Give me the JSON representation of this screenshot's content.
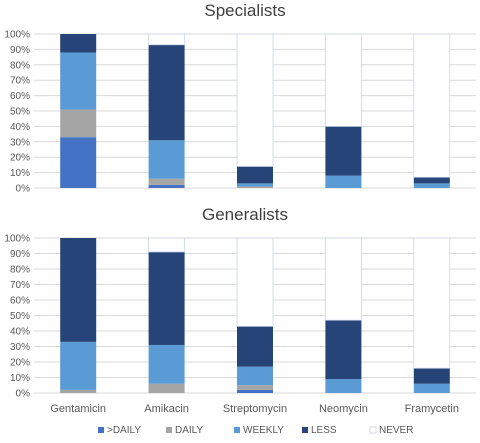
{
  "chart_data": [
    {
      "type": "bar",
      "stacked": true,
      "title": "Specialists",
      "categories": [
        "Gentamicin",
        "Amikacin",
        "Streptomycin",
        "Neomycin",
        "Framycetin"
      ],
      "yticks": [
        "0%",
        "10%",
        "20%",
        "30%",
        "40%",
        "50%",
        "60%",
        "70%",
        "80%",
        "90%",
        "100%"
      ],
      "ylim": [
        0,
        100
      ],
      "grid": true,
      "series": [
        {
          "name": ">DAILY",
          "values": [
            33,
            2,
            0,
            0,
            0
          ]
        },
        {
          "name": "DAILY",
          "values": [
            18,
            4,
            1,
            0,
            0
          ]
        },
        {
          "name": "WEEKLY",
          "values": [
            37,
            25,
            2,
            8,
            3
          ]
        },
        {
          "name": "LESS",
          "values": [
            12,
            62,
            11,
            32,
            4
          ]
        },
        {
          "name": "NEVER",
          "values": [
            0,
            7,
            86,
            60,
            93
          ]
        }
      ]
    },
    {
      "type": "bar",
      "stacked": true,
      "title": "Generalists",
      "categories": [
        "Gentamicin",
        "Amikacin",
        "Streptomycin",
        "Neomycin",
        "Framycetin"
      ],
      "yticks": [
        "0%",
        "10%",
        "20%",
        "30%",
        "40%",
        "50%",
        "60%",
        "70%",
        "80%",
        "90%",
        "100%"
      ],
      "ylim": [
        0,
        100
      ],
      "grid": true,
      "series": [
        {
          "name": ">DAILY",
          "values": [
            0,
            0,
            2,
            0,
            0
          ]
        },
        {
          "name": "DAILY",
          "values": [
            2,
            6,
            3,
            0,
            0
          ]
        },
        {
          "name": "WEEKLY",
          "values": [
            31,
            25,
            12,
            9,
            6
          ]
        },
        {
          "name": "LESS",
          "values": [
            67,
            60,
            26,
            38,
            10
          ]
        },
        {
          "name": "NEVER",
          "values": [
            0,
            9,
            57,
            53,
            84
          ]
        }
      ]
    }
  ],
  "legend": {
    "position": "bottom",
    "items": [
      {
        "label": ">DAILY",
        "color": "#4472C4"
      },
      {
        "label": "DAILY",
        "color": "#A5A5A5"
      },
      {
        "label": "WEEKLY",
        "color": "#5B9BD5"
      },
      {
        "label": "LESS",
        "color": "#264478"
      },
      {
        "label": "NEVER",
        "color": "#FFFFFF"
      }
    ]
  },
  "colors": {
    "gridline": "#D9D9D9",
    "axis_text": "#595959",
    "title_text": "#404040",
    "never_outline": "#C9D6EA"
  }
}
